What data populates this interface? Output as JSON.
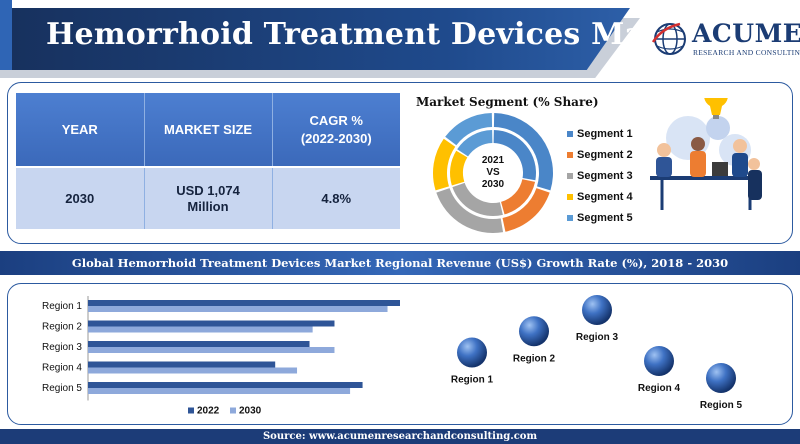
{
  "header": {
    "title": "Hemorrhoid Treatment Devices Market",
    "logo_name": "ACUMEN",
    "logo_tagline": "RESEARCH AND CONSULTING"
  },
  "summary_table": {
    "headers": [
      "YEAR",
      "MARKET SIZE",
      "CAGR %\n(2022-2030)"
    ],
    "row": [
      "2030",
      "USD 1,074\nMillion",
      "4.8%"
    ]
  },
  "segment_chart": {
    "title": "Market Segment (% Share)",
    "center_label": "2021\nVS\n2030"
  },
  "banner": "Global Hemorrhoid Treatment Devices Market Regional Revenue (US$) Growth Rate (%), 2018 - 2030",
  "footer": "Source: www.acumenresearchandconsulting.com",
  "colors": {
    "navy": "#1c3c78",
    "blue": "#3b69ba",
    "light_blue": "#c8d6f0",
    "series_2022": "#2f5597",
    "series_2030": "#8ea9db"
  },
  "icons": [
    "logo-globe-icon",
    "team-illustration"
  ],
  "chart_data": [
    {
      "type": "pie",
      "title": "Market Segment (% Share)",
      "center_text": "2021 VS 2030",
      "categories": [
        "Segment 1",
        "Segment 2",
        "Segment 3",
        "Segment 4",
        "Segment 5"
      ],
      "colors": [
        "#4a86c8",
        "#ed7d31",
        "#a5a5a5",
        "#ffc000",
        "#5b9bd5"
      ],
      "series": [
        {
          "values": [
            30,
            17,
            23,
            15,
            15
          ]
        },
        {
          "values": [
            28,
            18,
            24,
            14,
            16
          ]
        }
      ]
    },
    {
      "type": "bar",
      "orientation": "horizontal",
      "categories": [
        "Region 1",
        "Region 2",
        "Region 3",
        "Region 4",
        "Region 5"
      ],
      "series": [
        {
          "name": "2022",
          "values": [
            100,
            79,
            71,
            60,
            88
          ],
          "color": "#2f5597"
        },
        {
          "name": "2030",
          "values": [
            96,
            72,
            79,
            67,
            84
          ],
          "color": "#8ea9db"
        }
      ],
      "legend": "bottom",
      "grid": false
    },
    {
      "type": "scatter",
      "style": "bubble",
      "categories": [
        "Region 1",
        "Region 2",
        "Region 3",
        "Region 4",
        "Region 5"
      ],
      "values": [
        2,
        3,
        4,
        1.6,
        0.8
      ]
    }
  ]
}
